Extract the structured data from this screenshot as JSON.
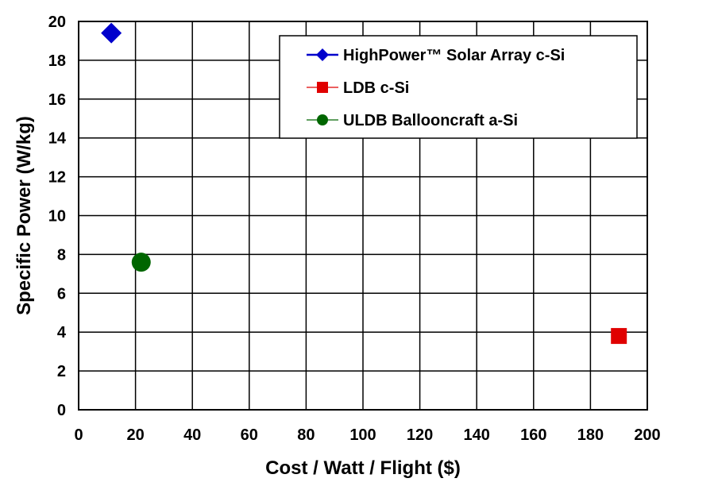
{
  "chart_data": {
    "type": "scatter",
    "title": "",
    "xlabel": "Cost / Watt / Flight ($)",
    "ylabel": "Specific Power (W/kg)",
    "xlim": [
      0,
      200
    ],
    "ylim": [
      0,
      20
    ],
    "x_ticks": [
      0,
      20,
      40,
      60,
      80,
      100,
      120,
      140,
      160,
      180,
      200
    ],
    "y_ticks": [
      0,
      2,
      4,
      6,
      8,
      10,
      12,
      14,
      16,
      18,
      20
    ],
    "grid": true,
    "legend_position": "top-right",
    "series": [
      {
        "name": "HighPower™ Solar Array c-Si",
        "marker": "diamond",
        "color": "#0000cc",
        "points": [
          {
            "x": 11.5,
            "y": 19.4
          }
        ]
      },
      {
        "name": "LDB c-Si",
        "marker": "square",
        "color": "#e00000",
        "points": [
          {
            "x": 190,
            "y": 3.8
          }
        ]
      },
      {
        "name": "ULDB Ballooncraft a-Si",
        "marker": "circle",
        "color": "#006600",
        "points": [
          {
            "x": 22,
            "y": 7.6
          }
        ]
      }
    ]
  }
}
